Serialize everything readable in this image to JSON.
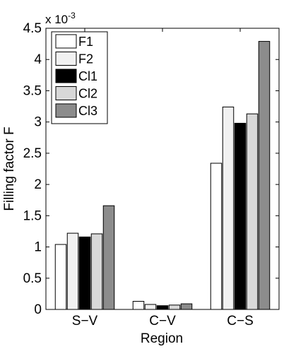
{
  "chart_data": {
    "type": "bar",
    "title": "",
    "xlabel": "Region",
    "ylabel": "Filling factor F",
    "multiplier_label": "x 10",
    "multiplier_exponent": "-3",
    "categories": [
      "S−V",
      "C−V",
      "C−S"
    ],
    "ylim": [
      0,
      4.5
    ],
    "yticks": [
      0,
      0.5,
      1,
      1.5,
      2,
      2.5,
      3,
      3.5,
      4,
      4.5
    ],
    "ytick_labels": [
      "0",
      "0.5",
      "1",
      "1.5",
      "2",
      "2.5",
      "3",
      "3.5",
      "4",
      "4.5"
    ],
    "grid": false,
    "legend_position": "top-left",
    "series": [
      {
        "name": "F1",
        "color": "#ffffff",
        "values": [
          1.04,
          0.13,
          2.34
        ]
      },
      {
        "name": "F2",
        "color": "#f1f1f1",
        "values": [
          1.22,
          0.08,
          3.24
        ]
      },
      {
        "name": "Cl1",
        "color": "#000000",
        "values": [
          1.16,
          0.06,
          2.98
        ]
      },
      {
        "name": "Cl2",
        "color": "#d8d8d8",
        "values": [
          1.21,
          0.07,
          3.13
        ]
      },
      {
        "name": "Cl3",
        "color": "#8c8c8c",
        "values": [
          1.66,
          0.09,
          4.29
        ]
      }
    ]
  }
}
